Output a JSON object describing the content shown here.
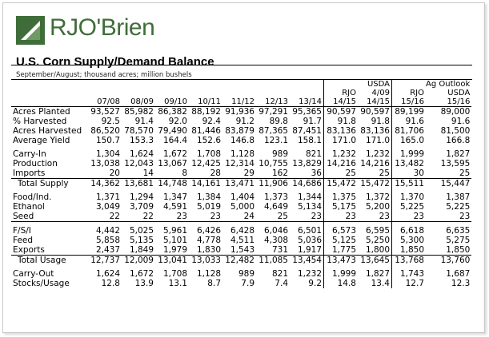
{
  "brand": {
    "name": "RJO'Brien",
    "color": "#3f6d39",
    "mark_icon": "rjo-brien-logo-icon"
  },
  "title": "U.S. Corn Supply/Demand Balance",
  "subtitle": "September/August;  thousand  acres;  million  bushels",
  "headers": {
    "group1": "USDA",
    "group2": "Ag Outlook",
    "row2": [
      "",
      "",
      "",
      "",
      "",
      "",
      "",
      "RJO",
      "4/09",
      "RJO",
      "USDA"
    ],
    "years": [
      "07/08",
      "08/09",
      "09/10",
      "10/11",
      "11/12",
      "12/13",
      "13/14",
      "14/15",
      "14/15",
      "15/16",
      "15/16"
    ]
  },
  "sections": [
    {
      "rows": [
        {
          "label": "Acres Planted",
          "values": [
            "93,527",
            "85,982",
            "86,382",
            "88,192",
            "91,936",
            "97,291",
            "95,365",
            "90,597",
            "90,597",
            "89,199",
            "89,000"
          ]
        },
        {
          "label": "% Harvested",
          "values": [
            "92.5",
            "91.4",
            "92.0",
            "92.4",
            "91.2",
            "89.8",
            "91.7",
            "91.8",
            "91.8",
            "91.6",
            "91.6"
          ]
        },
        {
          "label": "Acres Harvested",
          "values": [
            "86,520",
            "78,570",
            "79,490",
            "81,446",
            "83,879",
            "87,365",
            "87,451",
            "83,136",
            "83,136",
            "81,706",
            "81,500"
          ]
        },
        {
          "label": "Average Yield",
          "values": [
            "150.7",
            "153.3",
            "164.4",
            "152.6",
            "146.8",
            "123.1",
            "158.1",
            "171.0",
            "171.0",
            "165.0",
            "166.8"
          ]
        }
      ]
    },
    {
      "rows": [
        {
          "label": "Carry-In",
          "values": [
            "1,304",
            "1,624",
            "1,672",
            "1,708",
            "1,128",
            "989",
            "821",
            "1,232",
            "1,232",
            "1,999",
            "1,827"
          ]
        },
        {
          "label": "Production",
          "values": [
            "13,038",
            "12,043",
            "13,067",
            "12,425",
            "12,314",
            "10,755",
            "13,829",
            "14,216",
            "14,216",
            "13,482",
            "13,595"
          ]
        },
        {
          "label": "Imports",
          "values": [
            "20",
            "14",
            "8",
            "28",
            "29",
            "162",
            "36",
            "25",
            "25",
            "30",
            "25"
          ],
          "underline": true
        },
        {
          "label": "Total Supply",
          "indent": true,
          "values": [
            "14,362",
            "13,681",
            "14,748",
            "14,161",
            "13,471",
            "11,906",
            "14,686",
            "15,472",
            "15,472",
            "15,511",
            "15,447"
          ]
        }
      ]
    },
    {
      "rows": [
        {
          "label": "Food/Ind.",
          "values": [
            "1,371",
            "1,294",
            "1,347",
            "1,384",
            "1,404",
            "1,373",
            "1,344",
            "1,375",
            "1,372",
            "1,370",
            "1,387"
          ]
        },
        {
          "label": "Ethanol",
          "values": [
            "3,049",
            "3,709",
            "4,591",
            "5,019",
            "5,000",
            "4,649",
            "5,134",
            "5,175",
            "5,200",
            "5,225",
            "5,225"
          ]
        },
        {
          "label": "Seed",
          "values": [
            "22",
            "22",
            "23",
            "23",
            "24",
            "25",
            "23",
            "23",
            "23",
            "23",
            "23"
          ],
          "underline": true
        }
      ]
    },
    {
      "rows": [
        {
          "label": "F/S/I",
          "values": [
            "4,442",
            "5,025",
            "5,961",
            "6,426",
            "6,428",
            "6,046",
            "6,501",
            "6,573",
            "6,595",
            "6,618",
            "6,635"
          ]
        },
        {
          "label": "Feed",
          "values": [
            "5,858",
            "5,135",
            "5,101",
            "4,778",
            "4,511",
            "4,308",
            "5,036",
            "5,125",
            "5,250",
            "5,300",
            "5,275"
          ]
        },
        {
          "label": "Exports",
          "values": [
            "2,437",
            "1,849",
            "1,979",
            "1,830",
            "1,543",
            "731",
            "1,917",
            "1,775",
            "1,800",
            "1,850",
            "1,850"
          ],
          "underline": true
        },
        {
          "label": "Total Usage",
          "indent": true,
          "values": [
            "12,737",
            "12,009",
            "13,041",
            "13,033",
            "12,482",
            "11,085",
            "13,454",
            "13,473",
            "13,645",
            "13,768",
            "13,760"
          ]
        }
      ]
    },
    {
      "rows": [
        {
          "label": "Carry-Out",
          "values": [
            "1,624",
            "1,672",
            "1,708",
            "1,128",
            "989",
            "821",
            "1,232",
            "1,999",
            "1,827",
            "1,743",
            "1,687"
          ]
        },
        {
          "label": "Stocks/Usage",
          "values": [
            "12.8",
            "13.9",
            "13.1",
            "8.7",
            "7.9",
            "7.4",
            "9.2",
            "14.8",
            "13.4",
            "12.7",
            "12.3"
          ]
        }
      ]
    }
  ]
}
